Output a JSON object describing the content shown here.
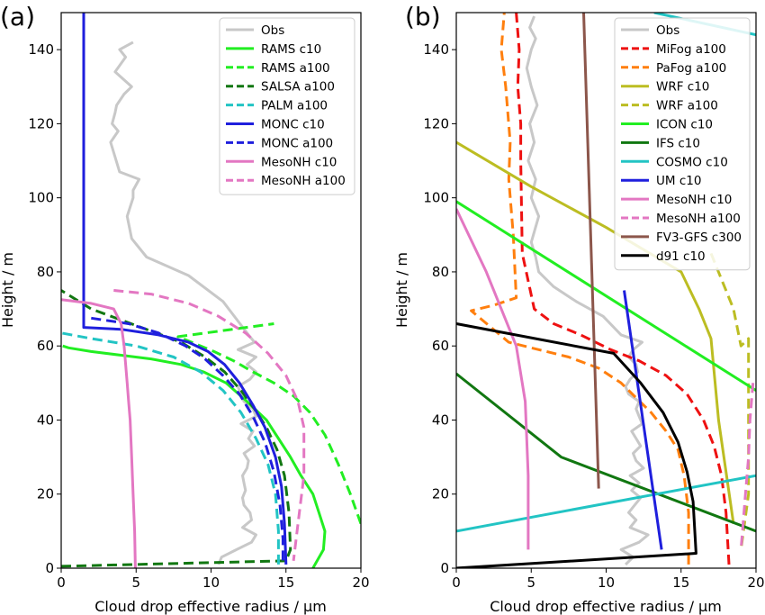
{
  "chart_data": [
    {
      "type": "line",
      "panel_label": "(a)",
      "xlabel": "Cloud drop effective radius / μm",
      "ylabel": "Height / m",
      "xlim": [
        0,
        20
      ],
      "ylim": [
        0,
        150
      ],
      "xticks": [
        "0",
        "5",
        "10",
        "15",
        "20"
      ],
      "yticks": [
        "0",
        "20",
        "40",
        "60",
        "80",
        "100",
        "120",
        "140"
      ],
      "legend_position": "top-right",
      "series": [
        {
          "name": "Obs",
          "color": "#c8c8c8",
          "dash": "solid",
          "x": [
            10.5,
            10.7,
            11.7,
            12.7,
            13.0,
            12.1,
            12.7,
            12.6,
            12.2,
            12.1,
            12.3,
            12.2,
            12.1,
            12.4,
            12.5,
            12.2,
            12.9,
            12.5,
            12.8,
            12.0,
            13.0,
            12.8,
            12.2,
            12.0,
            11.8,
            12.6,
            13.0,
            12.4,
            13.0,
            11.8,
            12.9,
            12.5,
            10.8,
            8.5,
            5.7,
            4.7,
            4.4,
            4.8,
            4.8,
            5.2,
            3.9,
            3.3,
            3.8,
            3.4,
            3.6,
            3.7,
            4.2,
            4.7,
            3.6,
            4.3,
            3.9,
            4.8
          ],
          "y": [
            1,
            3,
            5,
            7,
            9,
            11,
            13,
            15,
            17,
            19,
            21,
            23,
            25,
            27,
            29,
            31,
            33,
            35,
            37,
            39,
            41,
            43,
            45,
            47,
            49,
            51,
            53,
            55,
            57,
            59,
            61,
            63,
            72,
            79,
            84,
            89,
            95,
            100,
            102,
            105,
            107,
            115,
            118,
            120,
            123,
            125,
            128,
            130,
            134,
            138,
            140,
            142
          ]
        },
        {
          "name": "RAMS c10",
          "color": "#22ee22",
          "dash": "solid",
          "x": [
            16.8,
            17.5,
            17.6,
            17.2,
            16.8,
            16.0,
            15.3,
            14.5,
            13.7,
            12.4,
            11.0,
            9.5,
            8.0,
            6.0,
            4.0,
            2.0,
            0.5,
            0.1
          ],
          "y": [
            0,
            5,
            10,
            15,
            20,
            25,
            30,
            35,
            40,
            45,
            50,
            53,
            55,
            56.5,
            57.5,
            58.5,
            59.5,
            60
          ]
        },
        {
          "name": "RAMS a100",
          "color": "#22ee22",
          "dash": "dashed",
          "x": [
            20.0,
            19.3,
            18.5,
            17.6,
            16.6,
            15.5,
            14.2,
            12.8,
            11.5,
            10.2,
            9.0,
            7.8,
            14.2
          ],
          "y": [
            12,
            20,
            28,
            36,
            42,
            46.5,
            50,
            53,
            56,
            58.5,
            60.5,
            62.5,
            66
          ]
        },
        {
          "name": "SALSA a100",
          "color": "#117711",
          "dash": "dashed",
          "x": [
            0.0,
            15.0,
            15.3,
            15.2,
            14.9,
            14.4,
            13.7,
            12.9,
            12.0,
            10.9,
            9.6,
            8.0,
            6.0,
            4.0,
            2.0,
            0.0
          ],
          "y": [
            0.5,
            2,
            5,
            15,
            25,
            32,
            38,
            43,
            48,
            53,
            57,
            61,
            64,
            67,
            70,
            75
          ]
        },
        {
          "name": "PALM a100",
          "color": "#22c4c4",
          "dash": "dashed",
          "x": [
            14.5,
            14.5,
            14.3,
            13.8,
            13.0,
            12.0,
            10.8,
            9.3,
            7.5,
            5.0,
            2.0,
            0.0
          ],
          "y": [
            1,
            10,
            20,
            28,
            35,
            42,
            48,
            53,
            57,
            60,
            62,
            63.5
          ]
        },
        {
          "name": "MONC c10",
          "color": "#1f1fdd",
          "dash": "solid",
          "x": [
            1.5,
            1.5,
            1.5,
            4.0,
            6.5,
            8.5,
            9.8,
            10.9,
            11.9,
            12.8,
            13.6,
            14.3,
            14.7,
            14.9,
            15.0
          ],
          "y": [
            150,
            80,
            65,
            64.5,
            63,
            61,
            58.5,
            55,
            50,
            44,
            38,
            30,
            22,
            12,
            1
          ]
        },
        {
          "name": "MONC a100",
          "color": "#1f1fdd",
          "dash": "dashed",
          "x": [
            2.0,
            4.5,
            6.5,
            8.3,
            9.6,
            10.8,
            11.9,
            12.8,
            13.6,
            14.2,
            14.6,
            14.8,
            14.8
          ],
          "y": [
            67.5,
            66,
            63.5,
            60,
            56.5,
            52,
            47,
            41,
            34,
            26,
            17,
            8,
            1
          ]
        },
        {
          "name": "MesoNH c10",
          "color": "#e377c2",
          "dash": "solid",
          "x": [
            0.0,
            2.0,
            3.5,
            4.0,
            4.2,
            4.3,
            4.4,
            4.5,
            4.6,
            4.7,
            4.8,
            4.9,
            4.95
          ],
          "y": [
            72.5,
            71.5,
            70,
            66,
            60,
            55,
            50,
            45,
            40,
            30,
            20,
            10,
            0
          ]
        },
        {
          "name": "MesoNH a100",
          "color": "#e377c2",
          "dash": "dashed",
          "x": [
            3.5,
            6.0,
            8.5,
            10.5,
            12.3,
            13.8,
            15.0,
            15.8,
            16.2,
            16.2,
            15.8,
            15.5
          ],
          "y": [
            75,
            74,
            71.5,
            68,
            63.5,
            58,
            52,
            45,
            38,
            25,
            12,
            2
          ]
        }
      ]
    },
    {
      "type": "line",
      "panel_label": "(b)",
      "xlabel": "Cloud drop effective radius / μm",
      "ylabel": "Height / m",
      "xlim": [
        0,
        20
      ],
      "ylim": [
        0,
        150
      ],
      "xticks": [
        "0",
        "5",
        "10",
        "15",
        "20"
      ],
      "yticks": [
        "0",
        "20",
        "40",
        "60",
        "80",
        "100",
        "120",
        "140"
      ],
      "legend_position": "top-right",
      "series": [
        {
          "name": "Obs",
          "color": "#c8c8c8",
          "dash": "solid",
          "x": [
            11.3,
            11.8,
            11.0,
            12.2,
            12.8,
            11.6,
            12.0,
            11.5,
            11.9,
            12.3,
            11.7,
            12.2,
            11.6,
            12.5,
            12.0,
            11.8,
            12.3,
            12.0,
            11.7,
            12.4,
            12.2,
            12.0,
            12.2,
            11.5,
            11.3,
            11.6,
            12.1,
            12.0,
            11.5,
            11.8,
            12.4,
            11.0,
            9.8,
            8.0,
            6.5,
            5.5,
            5.3,
            5.0,
            5.5,
            5.0,
            5.3,
            4.8,
            5.2,
            4.9,
            5.4,
            5.0,
            4.7,
            5.0,
            5.3,
            4.9,
            5.2
          ],
          "y": [
            1,
            3,
            5,
            7,
            9,
            11,
            13,
            15,
            17,
            19,
            21,
            23,
            25,
            27,
            29,
            31,
            33,
            35,
            37,
            39,
            41,
            43,
            45,
            47,
            49,
            51,
            53,
            55,
            57,
            59,
            61,
            63,
            68,
            72,
            76,
            80,
            84,
            88,
            95,
            100,
            105,
            110,
            115,
            120,
            125,
            130,
            135,
            140,
            143,
            146,
            149
          ]
        },
        {
          "name": "MiFog a100",
          "color": "#ee1111",
          "dash": "dashed",
          "x": [
            18.2,
            18.0,
            17.7,
            17.2,
            16.5,
            15.4,
            14.0,
            12.2,
            10.3,
            8.3,
            6.5,
            5.2,
            4.4,
            4.3,
            4.3,
            4.1,
            4.2,
            4.0
          ],
          "y": [
            1,
            15,
            25,
            33,
            40,
            47,
            52,
            56,
            59,
            63,
            66,
            70,
            85,
            110,
            120,
            130,
            140,
            150
          ]
        },
        {
          "name": "PaFog a100",
          "color": "#ff7f0e",
          "dash": "dashed",
          "x": [
            15.5,
            15.5,
            15.2,
            14.8,
            14.0,
            13.0,
            12.0,
            11.0,
            9.5,
            7.5,
            5.5,
            3.5,
            1.0,
            2.5,
            4.0,
            3.8,
            3.5,
            3.6,
            3.3,
            3.0,
            3.2
          ],
          "y": [
            1,
            15,
            25,
            32,
            37,
            42,
            46,
            50,
            54,
            57,
            59,
            61,
            69.5,
            71,
            73,
            90,
            105,
            115,
            130,
            140,
            150
          ]
        },
        {
          "name": "WRF c10",
          "color": "#bcbd22",
          "dash": "solid",
          "x": [
            0.0,
            5.0,
            10.0,
            15.0,
            16.2,
            17.0,
            17.5,
            18.5
          ],
          "y": [
            115,
            103,
            92,
            80,
            70,
            62,
            40,
            12
          ]
        },
        {
          "name": "WRF a100",
          "color": "#bcbd22",
          "dash": "dashed",
          "x": [
            17.0,
            18.5,
            19.0,
            19.5,
            19.5,
            19.5,
            19.0
          ],
          "y": [
            85,
            70,
            60,
            62,
            40,
            20,
            5
          ]
        },
        {
          "name": "ICON c10",
          "color": "#22ee22",
          "dash": "solid",
          "x": [
            0.0,
            20.0
          ],
          "y": [
            99,
            48
          ]
        },
        {
          "name": "IFS c10",
          "color": "#117711",
          "dash": "solid",
          "x": [
            0.0,
            7.0,
            20.0
          ],
          "y": [
            52.5,
            30,
            10
          ]
        },
        {
          "name": "COSMO c10",
          "color": "#22c4c4",
          "dash": "solid",
          "x": [
            0.0,
            20.0
          ],
          "y": [
            10,
            25
          ]
        },
        {
          "name": "UM c10",
          "color": "#1f1fdd",
          "dash": "solid",
          "x": [
            11.2,
            13.7
          ],
          "y": [
            75,
            5
          ]
        },
        {
          "name": "MesoNH c10",
          "color": "#e377c2",
          "dash": "solid",
          "x": [
            0.0,
            2.0,
            4.0,
            4.6,
            4.8,
            4.8
          ],
          "y": [
            97,
            80,
            60,
            45,
            25,
            5
          ]
        },
        {
          "name": "MesoNH a100",
          "color": "#e377c2",
          "dash": "dashed",
          "x": [
            19.8,
            19.6,
            19.5,
            19.3,
            19.1,
            19.0
          ],
          "y": [
            50,
            40,
            30,
            20,
            10,
            5
          ]
        },
        {
          "name": "FV3-GFS c300",
          "color": "#8c564b",
          "dash": "solid",
          "x": [
            8.5,
            9.5
          ],
          "y": [
            150,
            21.5
          ]
        },
        {
          "name": "d91 c10",
          "color": "#000000",
          "dash": "solid",
          "x": [
            0.0,
            10.5,
            12.3,
            13.8,
            14.8,
            15.4,
            15.8,
            16.0,
            0.0
          ],
          "y": [
            66,
            58,
            50,
            42,
            34,
            26,
            18,
            4,
            0
          ]
        }
      ],
      "extra_lines": [
        {
          "color": "#22c4c4",
          "dash": "solid",
          "x": [
            13.2,
            20.0
          ],
          "y": [
            150,
            144
          ]
        }
      ]
    }
  ]
}
